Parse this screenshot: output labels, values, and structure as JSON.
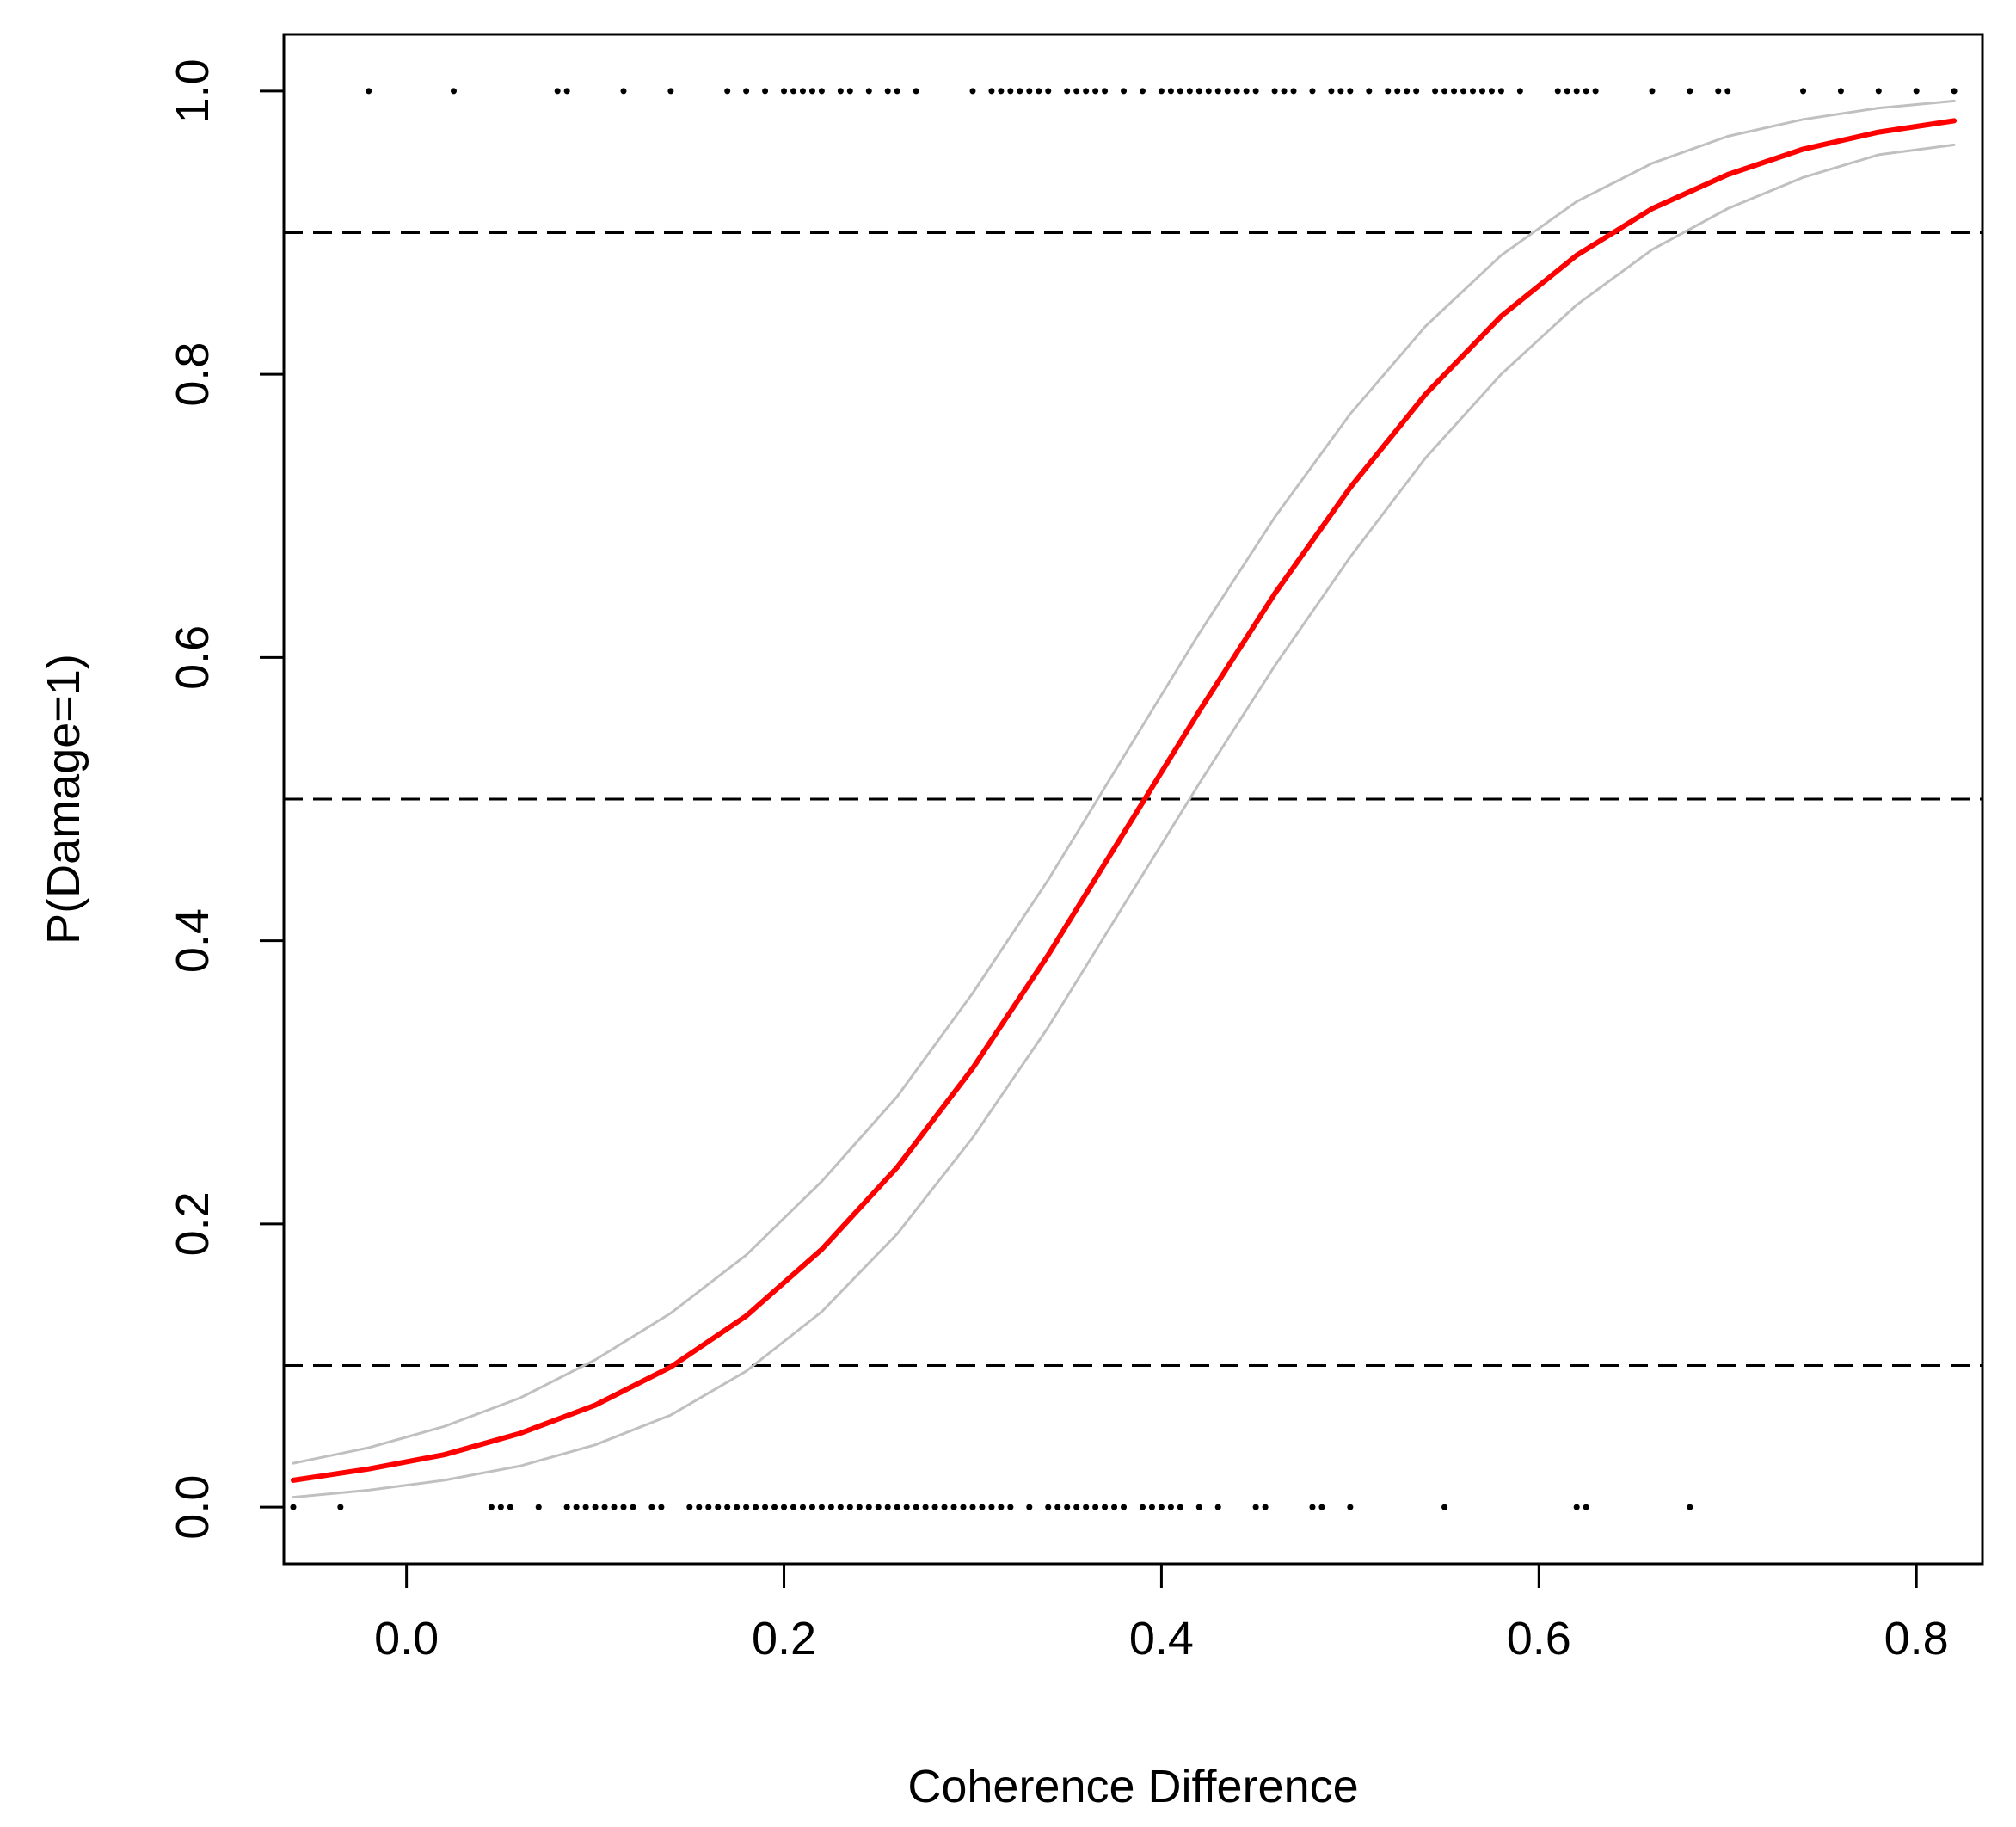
{
  "chart_data": {
    "type": "line",
    "title": "",
    "xlabel": "Coherence Difference",
    "ylabel": "P(Damage=1)",
    "xlim": [
      -0.065,
      0.835
    ],
    "ylim": [
      -0.04,
      1.04
    ],
    "xticks": [
      {
        "value": 0.0,
        "label": "0.0"
      },
      {
        "value": 0.2,
        "label": "0.2"
      },
      {
        "value": 0.4,
        "label": "0.4"
      },
      {
        "value": 0.6,
        "label": "0.6"
      },
      {
        "value": 0.8,
        "label": "0.8"
      }
    ],
    "yticks": [
      {
        "value": 0.0,
        "label": "0.0"
      },
      {
        "value": 0.2,
        "label": "0.2"
      },
      {
        "value": 0.4,
        "label": "0.4"
      },
      {
        "value": 0.6,
        "label": "0.6"
      },
      {
        "value": 0.8,
        "label": "0.8"
      },
      {
        "value": 1.0,
        "label": "1.0"
      }
    ],
    "grid": false,
    "legend": "none",
    "colors": {
      "fit": "#ff0000",
      "ci": "#c0c0c0",
      "points": "#000000",
      "reference": "#000000"
    },
    "reference_lines": [
      0.1,
      0.5,
      0.9
    ],
    "x": [
      -0.06,
      -0.02,
      0.02,
      0.06,
      0.1,
      0.14,
      0.18,
      0.22,
      0.26,
      0.3,
      0.34,
      0.38,
      0.42,
      0.46,
      0.5,
      0.54,
      0.58,
      0.62,
      0.66,
      0.7,
      0.74,
      0.78,
      0.82
    ],
    "series": [
      {
        "role": "fit",
        "values": [
          0.019,
          0.027,
          0.037,
          0.052,
          0.072,
          0.099,
          0.135,
          0.182,
          0.24,
          0.31,
          0.39,
          0.476,
          0.562,
          0.645,
          0.72,
          0.786,
          0.841,
          0.884,
          0.917,
          0.941,
          0.959,
          0.971,
          0.979
        ]
      },
      {
        "role": "upper-ci",
        "values": [
          0.031,
          0.042,
          0.057,
          0.077,
          0.104,
          0.137,
          0.178,
          0.23,
          0.29,
          0.363,
          0.443,
          0.53,
          0.617,
          0.699,
          0.772,
          0.834,
          0.884,
          0.922,
          0.949,
          0.968,
          0.98,
          0.988,
          0.993
        ]
      },
      {
        "role": "lower-ci",
        "values": [
          0.007,
          0.012,
          0.019,
          0.029,
          0.044,
          0.065,
          0.096,
          0.138,
          0.193,
          0.261,
          0.339,
          0.425,
          0.511,
          0.594,
          0.671,
          0.741,
          0.8,
          0.849,
          0.888,
          0.917,
          0.939,
          0.955,
          0.962
        ]
      }
    ],
    "points_y1": [
      -0.02,
      0.025,
      0.08,
      0.085,
      0.115,
      0.14,
      0.17,
      0.18,
      0.19,
      0.2,
      0.205,
      0.21,
      0.215,
      0.22,
      0.23,
      0.235,
      0.245,
      0.255,
      0.26,
      0.27,
      0.3,
      0.31,
      0.315,
      0.32,
      0.325,
      0.33,
      0.335,
      0.34,
      0.35,
      0.355,
      0.36,
      0.365,
      0.37,
      0.38,
      0.39,
      0.4,
      0.405,
      0.41,
      0.415,
      0.42,
      0.425,
      0.43,
      0.435,
      0.44,
      0.445,
      0.45,
      0.46,
      0.465,
      0.47,
      0.48,
      0.49,
      0.495,
      0.5,
      0.51,
      0.52,
      0.525,
      0.53,
      0.535,
      0.545,
      0.55,
      0.555,
      0.56,
      0.565,
      0.57,
      0.575,
      0.58,
      0.59,
      0.61,
      0.615,
      0.62,
      0.625,
      0.63,
      0.66,
      0.68,
      0.695,
      0.7,
      0.74,
      0.76,
      0.78,
      0.8,
      0.82
    ],
    "points_y0": [
      -0.06,
      -0.035,
      0.045,
      0.05,
      0.055,
      0.07,
      0.085,
      0.09,
      0.095,
      0.1,
      0.105,
      0.11,
      0.115,
      0.12,
      0.13,
      0.135,
      0.15,
      0.155,
      0.16,
      0.165,
      0.17,
      0.175,
      0.18,
      0.185,
      0.19,
      0.195,
      0.2,
      0.205,
      0.21,
      0.215,
      0.22,
      0.225,
      0.23,
      0.235,
      0.24,
      0.245,
      0.25,
      0.255,
      0.26,
      0.265,
      0.27,
      0.275,
      0.28,
      0.285,
      0.29,
      0.295,
      0.3,
      0.305,
      0.31,
      0.315,
      0.32,
      0.33,
      0.34,
      0.345,
      0.35,
      0.355,
      0.36,
      0.365,
      0.37,
      0.375,
      0.38,
      0.39,
      0.395,
      0.4,
      0.405,
      0.41,
      0.42,
      0.43,
      0.45,
      0.455,
      0.48,
      0.485,
      0.5,
      0.55,
      0.62,
      0.625,
      0.68
    ]
  }
}
